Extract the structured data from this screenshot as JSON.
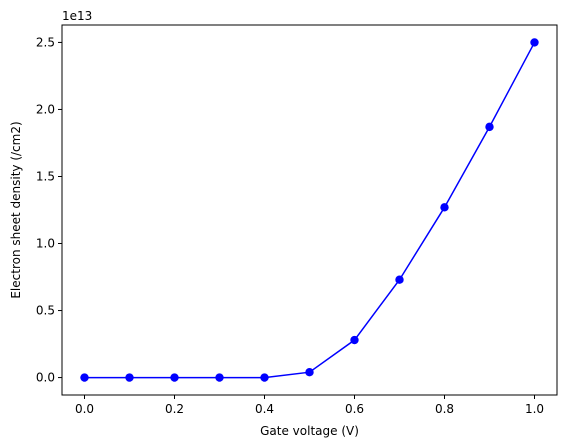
{
  "chart_data": {
    "type": "line",
    "title": "",
    "xlabel": "Gate voltage (V)",
    "ylabel": "Electron sheet density (/cm2)",
    "y_offset_label": "1e13",
    "y_scale": 10000000000000.0,
    "xlim": [
      -0.05,
      1.05
    ],
    "ylim": [
      -0.13,
      2.63
    ],
    "xticks": [
      0.0,
      0.2,
      0.4,
      0.6,
      0.8,
      1.0
    ],
    "xtick_labels": [
      "0.0",
      "0.2",
      "0.4",
      "0.6",
      "0.8",
      "1.0"
    ],
    "yticks": [
      0.0,
      0.5,
      1.0,
      1.5,
      2.0,
      2.5
    ],
    "ytick_labels": [
      "0.0",
      "0.5",
      "1.0",
      "1.5",
      "2.0",
      "2.5"
    ],
    "grid": false,
    "series": [
      {
        "color": "#0000ff",
        "marker": "circle",
        "x": [
          0.0,
          0.1,
          0.2,
          0.3,
          0.4,
          0.5,
          0.6,
          0.7,
          0.8,
          0.9,
          1.0
        ],
        "y": [
          0.0,
          0.0,
          0.0,
          0.0,
          0.0,
          0.04,
          0.28,
          0.73,
          1.27,
          1.87,
          2.5
        ]
      }
    ]
  }
}
